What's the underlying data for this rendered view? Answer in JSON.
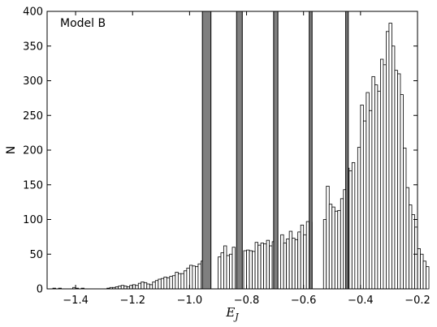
{
  "chart_data": {
    "type": "bar",
    "annotation": "Model B",
    "xlabel_main": "E",
    "xlabel_sub": "J",
    "ylabel": "N",
    "xlim": [
      -1.5,
      -0.2
    ],
    "ylim": [
      0,
      400
    ],
    "x_ticks": [
      -1.4,
      -1.2,
      -1.0,
      -0.8,
      -0.6,
      -0.4,
      -0.2
    ],
    "x_tick_labels": [
      "−1.4",
      "−1.2",
      "−1.0",
      "−0.8",
      "−0.6",
      "−0.4",
      "−0.2"
    ],
    "y_ticks": [
      0,
      50,
      100,
      150,
      200,
      250,
      300,
      350,
      400
    ],
    "y_tick_labels": [
      "0",
      "50",
      "100",
      "150",
      "200",
      "250",
      "300",
      "350",
      "400"
    ],
    "histogram": {
      "bin_start": -1.5,
      "bin_width": 0.01,
      "counts": [
        0,
        0,
        1,
        0,
        1,
        0,
        0,
        0,
        0,
        2,
        1,
        0,
        1,
        0,
        0,
        0,
        0,
        0,
        0,
        0,
        0,
        1,
        2,
        2,
        3,
        4,
        5,
        4,
        3,
        5,
        6,
        5,
        8,
        10,
        9,
        7,
        6,
        10,
        12,
        14,
        15,
        17,
        16,
        18,
        19,
        24,
        22,
        22,
        26,
        30,
        34,
        33,
        32,
        36,
        40,
        42,
        0,
        0,
        0,
        0,
        46,
        52,
        62,
        48,
        50,
        60,
        0,
        0,
        0,
        55,
        56,
        55,
        54,
        67,
        63,
        66,
        65,
        70,
        62,
        68,
        0,
        0,
        78,
        66,
        72,
        83,
        73,
        71,
        82,
        92,
        78,
        97,
        96,
        0,
        0,
        0,
        0,
        100,
        148,
        122,
        118,
        112,
        113,
        130,
        143,
        174,
        170,
        182,
        0,
        204,
        265,
        242,
        283,
        257,
        306,
        294,
        285,
        331,
        323,
        371,
        383,
        350,
        315,
        310,
        280,
        203,
        146,
        121,
        107,
        89,
        58,
        50,
        40,
        32
      ]
    },
    "shaded_bands": [
      [
        -0.955,
        -0.925
      ],
      [
        -0.835,
        -0.815
      ],
      [
        -0.705,
        -0.69
      ],
      [
        -0.58,
        -0.57
      ],
      [
        -0.452,
        -0.443
      ]
    ],
    "colors": {
      "bar_fill": "#ffffff",
      "bar_edge": "#000000",
      "band_fill": "#7f7f7f",
      "band_edge": "#000000"
    },
    "grid": false,
    "legend": "none"
  }
}
